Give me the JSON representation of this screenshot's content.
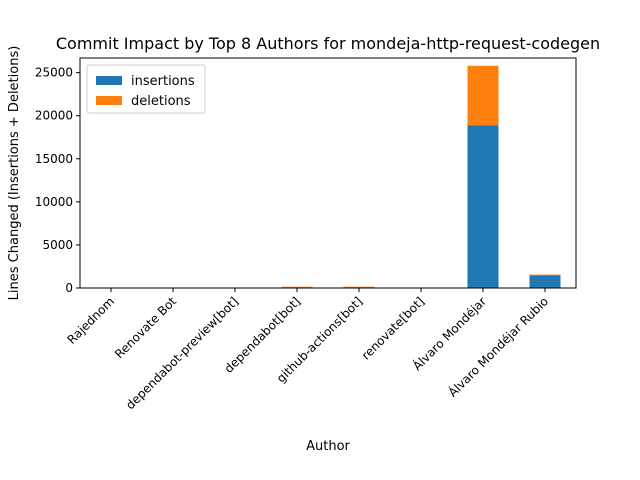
{
  "chart_data": {
    "type": "bar",
    "stacked": true,
    "title": "Commit Impact by Top 8 Authors for mondeja-http-request-codegen",
    "xlabel": "Author",
    "ylabel": "Lines Changed (Insertions + Deletions)",
    "categories": [
      "Rajednom",
      "Renovate Bot",
      "dependabot-preview[bot]",
      "dependabot[bot]",
      "github-actions[bot]",
      "renovate[bot]",
      "Álvaro Mondéjar",
      "Álvaro Mondéjar Rubio"
    ],
    "series": [
      {
        "name": "insertions",
        "color": "#1f77b4",
        "values": [
          10,
          15,
          20,
          90,
          60,
          25,
          18900,
          1450
        ]
      },
      {
        "name": "deletions",
        "color": "#ff7f0e",
        "values": [
          5,
          10,
          15,
          60,
          90,
          20,
          6900,
          100
        ]
      }
    ],
    "ylim": [
      0,
      26700
    ],
    "yticks": [
      0,
      5000,
      10000,
      15000,
      20000,
      25000
    ],
    "legend_position": "upper-left",
    "grid": false
  }
}
